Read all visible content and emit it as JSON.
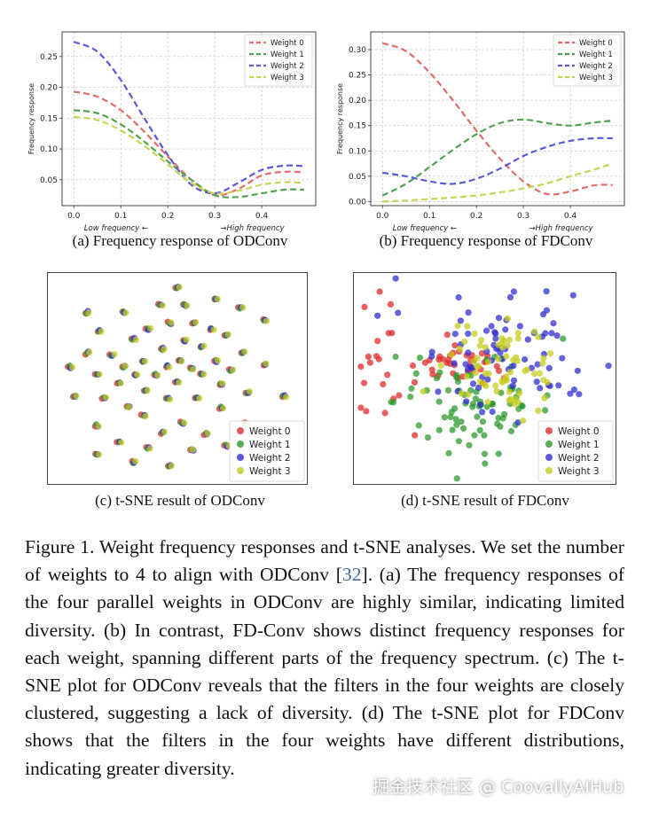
{
  "figure": {
    "captions": {
      "a": "(a) Frequency response of ODConv",
      "b": "(b) Frequency response of FDConv",
      "c": "(c) t-SNE result of ODConv",
      "d": "(d) t-SNE result of FDConv"
    },
    "caption_label": "Figure 1.",
    "caption_text_1": "  Weight frequency responses and t-SNE analyses.  We set the number of weights to 4 to align with ODConv [",
    "citation": "32",
    "caption_text_2": "].  (a) The frequency responses of the four parallel weights in ODConv are highly similar, indicating limited diversity. (b) In contrast, FD-Conv shows distinct frequency responses for each weight, spanning different parts of the frequency spectrum. (c) The t-SNE plot for ODConv reveals that the filters in the four weights are closely clustered, suggesting a lack of diversity.  (d) The t-SNE plot for FDConv shows that the filters in the four weights have different distributions, indicating greater diversity."
  },
  "watermark": "掘金技术社区 @ CoovallyAIHub",
  "colors": {
    "weight0": "#e06c6c",
    "weight1": "#4fa34f",
    "weight2": "#5a5ad6",
    "weight3": "#c9d456",
    "scatter0": "#dd2b2b",
    "scatter1": "#2e9a2e",
    "scatter2": "#2f2fd0",
    "scatter3": "#c6cc1f"
  },
  "chart_data": [
    {
      "id": "a",
      "type": "line",
      "ylabel": "Frequency response",
      "xlabel_low": "Low frequency ←",
      "xlabel_high": "→High frequency",
      "xlim": [
        -0.025,
        0.515
      ],
      "ylim": [
        0.008,
        0.29
      ],
      "xticks": [
        0.0,
        0.1,
        0.2,
        0.3,
        0.4
      ],
      "xtick_labels": [
        "0.0",
        "0.1",
        "0.2",
        "0.3",
        "0.4"
      ],
      "yticks": [
        0.05,
        0.1,
        0.15,
        0.2,
        0.25
      ],
      "ytick_labels": [
        "0.05",
        "0.10",
        "0.15",
        "0.20",
        "0.25"
      ],
      "grid": true,
      "legend": "top-right",
      "x": [
        0.0,
        0.05,
        0.1,
        0.15,
        0.2,
        0.25,
        0.3,
        0.35,
        0.4,
        0.45,
        0.49
      ],
      "series": [
        {
          "name": "Weight 0",
          "values": [
            0.193,
            0.185,
            0.163,
            0.128,
            0.088,
            0.05,
            0.025,
            0.035,
            0.057,
            0.063,
            0.062
          ]
        },
        {
          "name": "Weight 1",
          "values": [
            0.163,
            0.158,
            0.14,
            0.112,
            0.08,
            0.05,
            0.025,
            0.022,
            0.028,
            0.034,
            0.034
          ]
        },
        {
          "name": "Weight 2",
          "values": [
            0.274,
            0.258,
            0.212,
            0.15,
            0.09,
            0.042,
            0.028,
            0.045,
            0.066,
            0.073,
            0.072
          ]
        },
        {
          "name": "Weight 3",
          "values": [
            0.152,
            0.147,
            0.13,
            0.105,
            0.075,
            0.045,
            0.028,
            0.032,
            0.042,
            0.046,
            0.045
          ]
        }
      ]
    },
    {
      "id": "b",
      "type": "line",
      "ylabel": "Frequency response",
      "xlabel_low": "Low frequency ←",
      "xlabel_high": "→High frequency",
      "xlim": [
        -0.025,
        0.515
      ],
      "ylim": [
        -0.008,
        0.335
      ],
      "xticks": [
        0.0,
        0.1,
        0.2,
        0.3,
        0.4
      ],
      "xtick_labels": [
        "0.0",
        "0.1",
        "0.2",
        "0.3",
        "0.4"
      ],
      "yticks": [
        0.0,
        0.05,
        0.1,
        0.15,
        0.2,
        0.25,
        0.3
      ],
      "ytick_labels": [
        "0.00",
        "0.05",
        "0.10",
        "0.15",
        "0.20",
        "0.25",
        "0.30"
      ],
      "grid": true,
      "legend": "top-right",
      "x": [
        0.0,
        0.05,
        0.1,
        0.15,
        0.2,
        0.25,
        0.3,
        0.35,
        0.4,
        0.45,
        0.49
      ],
      "series": [
        {
          "name": "Weight 0",
          "values": [
            0.313,
            0.297,
            0.255,
            0.2,
            0.14,
            0.085,
            0.04,
            0.015,
            0.02,
            0.032,
            0.033
          ]
        },
        {
          "name": "Weight 1",
          "values": [
            0.012,
            0.035,
            0.068,
            0.102,
            0.133,
            0.155,
            0.162,
            0.155,
            0.15,
            0.156,
            0.16
          ]
        },
        {
          "name": "Weight 2",
          "values": [
            0.057,
            0.05,
            0.04,
            0.035,
            0.045,
            0.065,
            0.09,
            0.108,
            0.12,
            0.125,
            0.125
          ]
        },
        {
          "name": "Weight 3",
          "values": [
            0.0,
            0.002,
            0.005,
            0.008,
            0.012,
            0.018,
            0.026,
            0.036,
            0.05,
            0.063,
            0.075
          ]
        }
      ]
    },
    {
      "id": "c",
      "type": "scatter",
      "legend": "bottom-right",
      "series_names": [
        "Weight 0",
        "Weight 1",
        "Weight 2",
        "Weight 3"
      ],
      "clusters": [
        [
          0.5,
          0.04
        ],
        [
          0.66,
          0.1
        ],
        [
          0.43,
          0.13
        ],
        [
          0.53,
          0.13
        ],
        [
          0.13,
          0.17
        ],
        [
          0.28,
          0.17
        ],
        [
          0.76,
          0.14
        ],
        [
          0.47,
          0.22
        ],
        [
          0.57,
          0.22
        ],
        [
          0.38,
          0.25
        ],
        [
          0.64,
          0.25
        ],
        [
          0.18,
          0.26
        ],
        [
          0.86,
          0.21
        ],
        [
          0.32,
          0.3
        ],
        [
          0.53,
          0.31
        ],
        [
          0.7,
          0.28
        ],
        [
          0.44,
          0.35
        ],
        [
          0.6,
          0.34
        ],
        [
          0.13,
          0.37
        ],
        [
          0.23,
          0.38
        ],
        [
          0.77,
          0.37
        ],
        [
          0.51,
          0.41
        ],
        [
          0.36,
          0.41
        ],
        [
          0.66,
          0.41
        ],
        [
          0.06,
          0.44
        ],
        [
          0.28,
          0.44
        ],
        [
          0.46,
          0.44
        ],
        [
          0.56,
          0.45
        ],
        [
          0.86,
          0.43
        ],
        [
          0.17,
          0.48
        ],
        [
          0.33,
          0.48
        ],
        [
          0.41,
          0.48
        ],
        [
          0.6,
          0.48
        ],
        [
          0.72,
          0.46
        ],
        [
          0.26,
          0.52
        ],
        [
          0.5,
          0.52
        ],
        [
          0.68,
          0.53
        ],
        [
          0.37,
          0.56
        ],
        [
          0.79,
          0.57
        ],
        [
          0.08,
          0.59
        ],
        [
          0.2,
          0.6
        ],
        [
          0.46,
          0.6
        ],
        [
          0.58,
          0.6
        ],
        [
          0.3,
          0.64
        ],
        [
          0.68,
          0.65
        ],
        [
          0.94,
          0.59
        ],
        [
          0.36,
          0.69
        ],
        [
          0.17,
          0.74
        ],
        [
          0.52,
          0.72
        ],
        [
          0.78,
          0.73
        ],
        [
          0.44,
          0.77
        ],
        [
          0.62,
          0.78
        ],
        [
          0.26,
          0.82
        ],
        [
          0.38,
          0.85
        ],
        [
          0.56,
          0.86
        ],
        [
          0.7,
          0.84
        ],
        [
          0.17,
          0.88
        ],
        [
          0.47,
          0.94
        ],
        [
          0.32,
          0.92
        ]
      ]
    },
    {
      "id": "d",
      "type": "scatter",
      "legend": "bottom-right",
      "series_names": [
        "Weight 0",
        "Weight 1",
        "Weight 2",
        "Weight 3"
      ],
      "regions": [
        {
          "series": "Weight 0",
          "center": [
            0.43,
            0.43
          ],
          "spread": [
            0.07,
            0.04
          ]
        },
        {
          "series": "Weight 0",
          "center": [
            0.14,
            0.46
          ],
          "spread": [
            0.1,
            0.14
          ]
        },
        {
          "series": "Weight 1",
          "center": [
            0.46,
            0.62
          ],
          "spread": [
            0.15,
            0.12
          ]
        },
        {
          "series": "Weight 2",
          "center": [
            0.57,
            0.34
          ],
          "spread": [
            0.18,
            0.15
          ]
        },
        {
          "series": "Weight 3",
          "center": [
            0.58,
            0.46
          ],
          "spread": [
            0.11,
            0.1
          ]
        }
      ]
    }
  ]
}
